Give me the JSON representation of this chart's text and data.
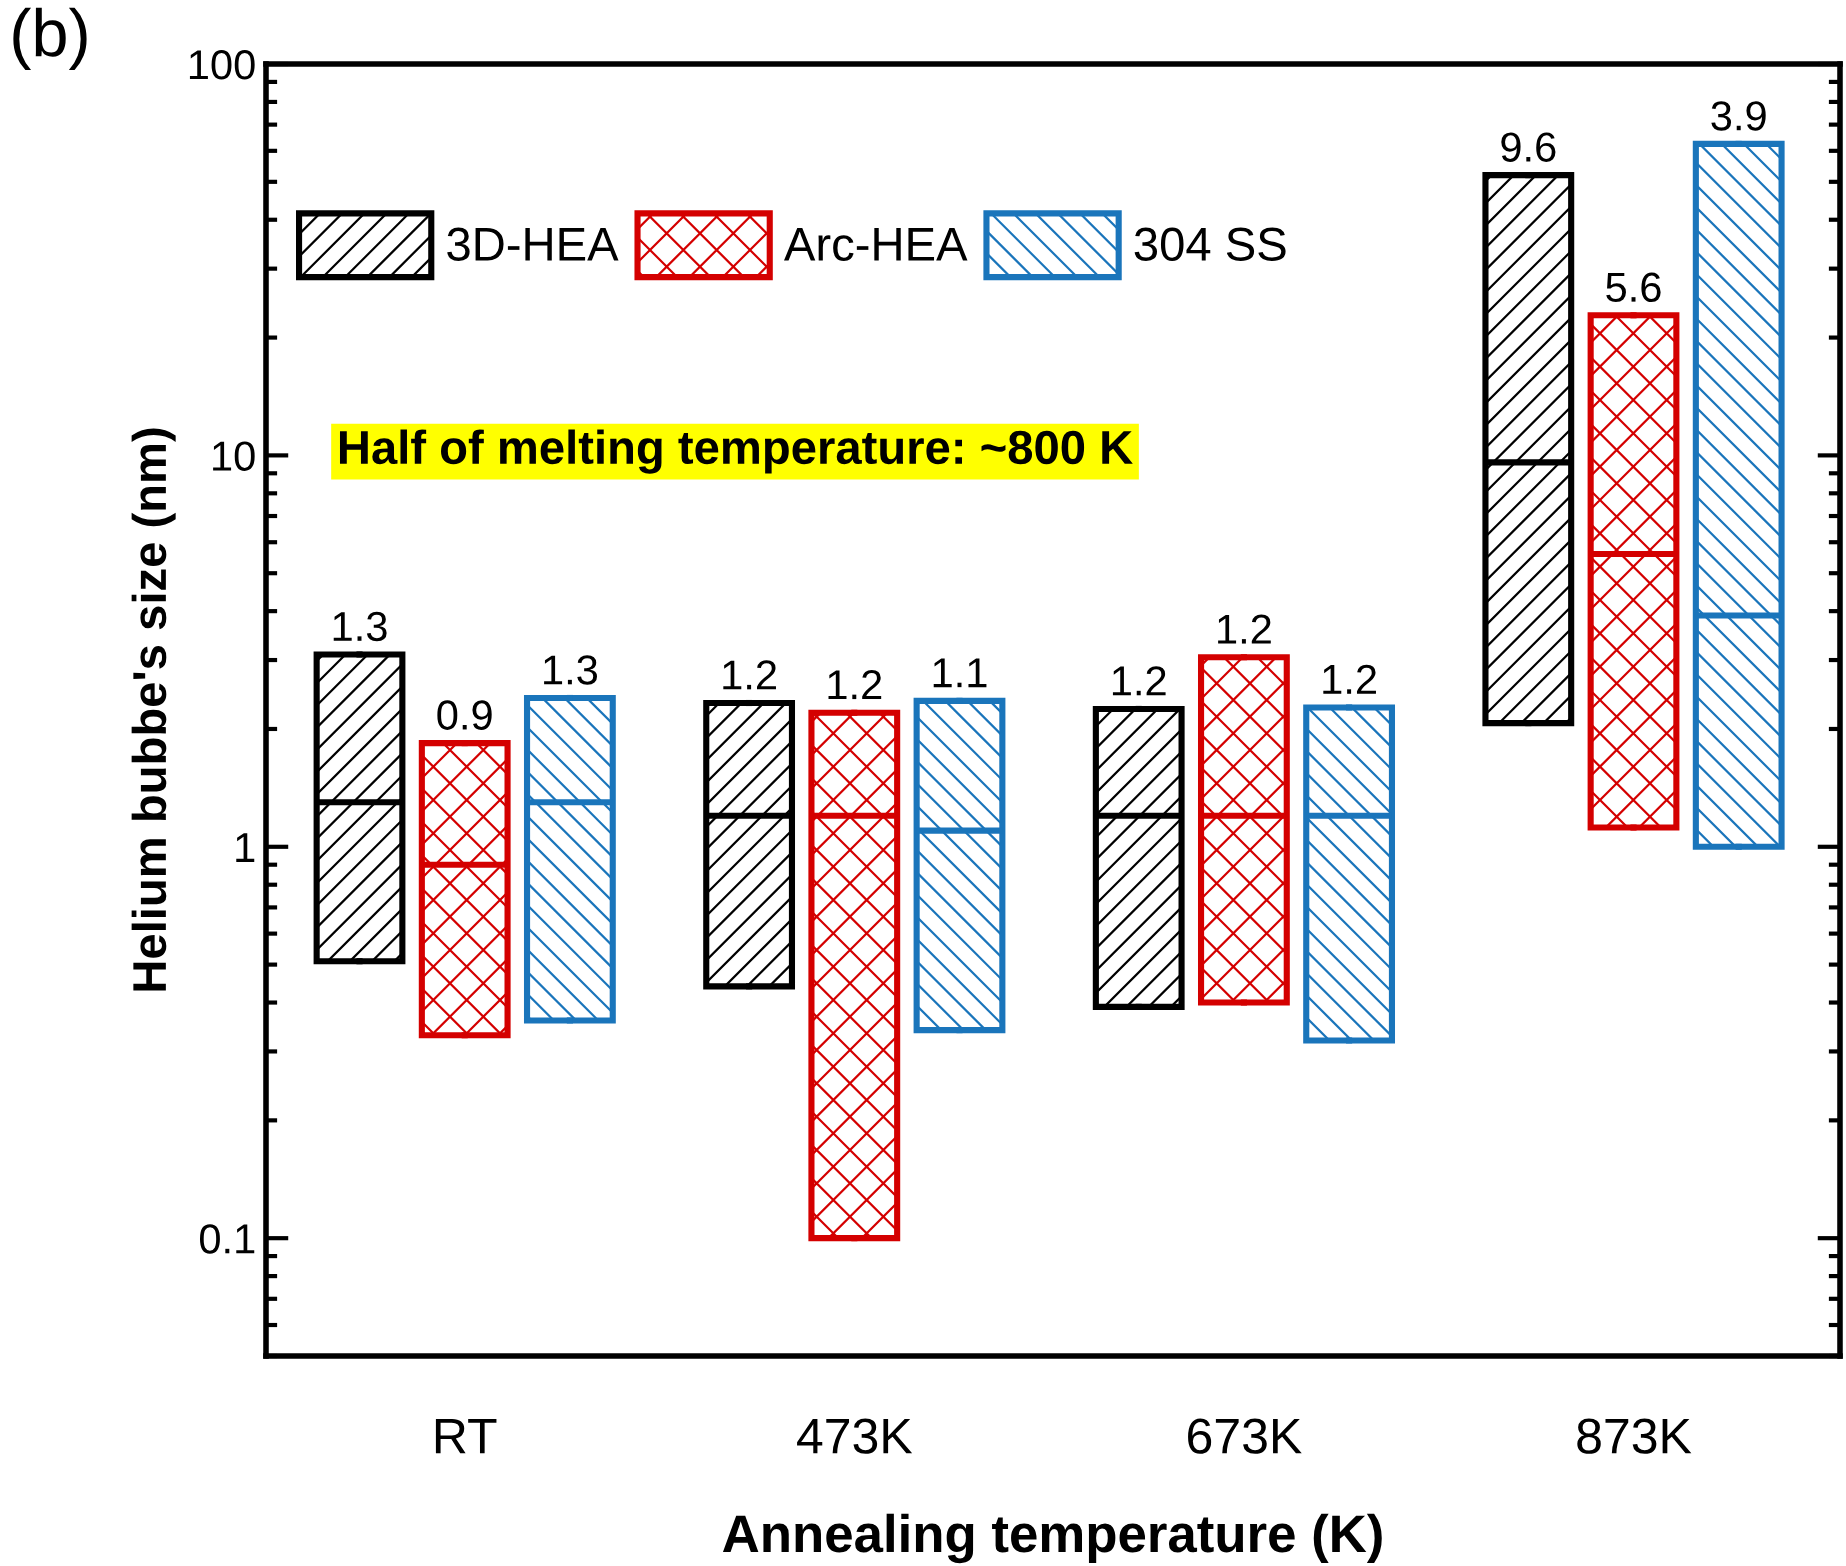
{
  "chart_data": {
    "type": "box",
    "xlabel": "Annealing temperature (K)",
    "ylabel": "Helium bubbe's size (nm)",
    "categories": [
      "RT",
      "473K",
      "673K",
      "873K"
    ],
    "log": true,
    "ylim": [
      0.05,
      100
    ],
    "yticks": [
      0.1,
      1,
      10,
      100
    ],
    "grid": false,
    "legend": "top left",
    "annotations": [
      "(b)",
      "Half of melting temperature: ~800 K"
    ],
    "series": [
      {
        "name": "3D-HEA",
        "color": "#000000",
        "value_labels": [
          "1.3",
          "1.2",
          "1.2",
          "9.6"
        ],
        "boxes": [
          {
            "low": 0.51,
            "q1": 0.51,
            "median": 1.3,
            "q3": 3.1,
            "high": 3.1
          },
          {
            "low": 0.44,
            "q1": 0.44,
            "median": 1.2,
            "q3": 2.33,
            "high": 2.33
          },
          {
            "low": 0.39,
            "q1": 0.39,
            "median": 1.2,
            "q3": 2.25,
            "high": 2.25
          },
          {
            "low": 2.07,
            "q1": 2.07,
            "median": 9.6,
            "q3": 52,
            "high": 52
          }
        ]
      },
      {
        "name": "Arc-HEA",
        "color": "#d40000",
        "value_labels": [
          "0.9",
          "1.2",
          "1.2",
          "5.6"
        ],
        "boxes": [
          {
            "low": 0.33,
            "q1": 0.33,
            "median": 0.9,
            "q3": 1.84,
            "high": 1.84
          },
          {
            "low": 0.1,
            "q1": 0.1,
            "median": 1.2,
            "q3": 2.2,
            "high": 2.2
          },
          {
            "low": 0.4,
            "q1": 0.4,
            "median": 1.2,
            "q3": 3.05,
            "high": 3.05
          },
          {
            "low": 1.12,
            "q1": 1.12,
            "median": 5.6,
            "q3": 22.8,
            "high": 22.8
          }
        ]
      },
      {
        "name": "304 SS",
        "color": "#1a75bb",
        "value_labels": [
          "1.3",
          "1.1",
          "1.2",
          "3.9"
        ],
        "boxes": [
          {
            "low": 0.36,
            "q1": 0.36,
            "median": 1.3,
            "q3": 2.4,
            "high": 2.4
          },
          {
            "low": 0.34,
            "q1": 0.34,
            "median": 1.1,
            "q3": 2.36,
            "high": 2.36
          },
          {
            "low": 0.32,
            "q1": 0.32,
            "median": 1.2,
            "q3": 2.27,
            "high": 2.27
          },
          {
            "low": 1.0,
            "q1": 1.0,
            "median": 3.9,
            "q3": 62.5,
            "high": 62.5
          }
        ]
      }
    ]
  }
}
